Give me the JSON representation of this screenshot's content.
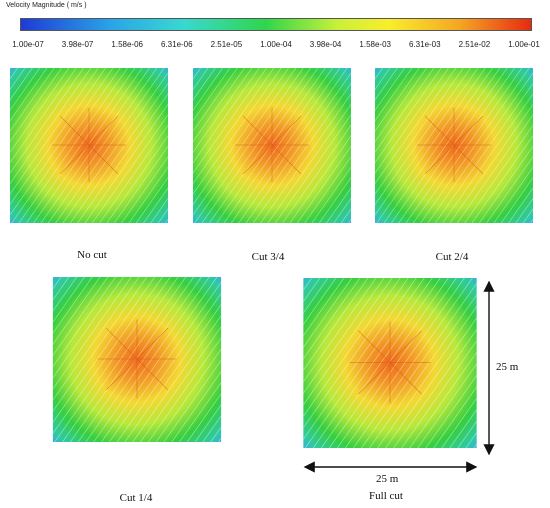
{
  "colorbar": {
    "title": "Velocity Magnitude ( m/s )",
    "ticks": [
      "1.00e-07",
      "3.98e-07",
      "1.58e-06",
      "6.31e-06",
      "2.51e-05",
      "1.00e-04",
      "3.98e-04",
      "1.58e-03",
      "6.31e-03",
      "2.51e-02",
      "1.00e-01"
    ]
  },
  "panels": {
    "no_cut": "No cut",
    "cut_3_4": "Cut 3/4",
    "cut_2_4": "Cut 2/4",
    "cut_1_4": "Cut 1/4",
    "full_cut": "Full cut"
  },
  "dimensions": {
    "height": "25 m",
    "width": "25 m"
  }
}
